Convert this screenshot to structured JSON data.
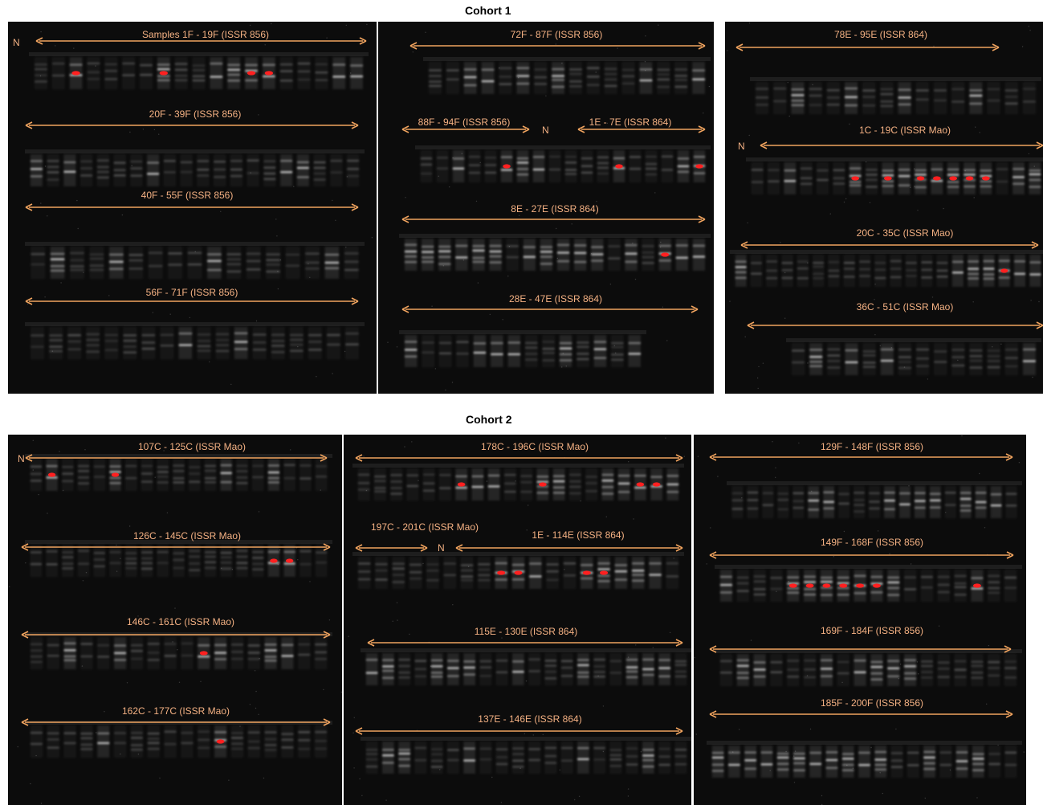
{
  "cohorts": [
    {
      "title": "Cohort 1",
      "panels": [
        {
          "labels": [
            "Samples 1F - 19F (ISSR 856)",
            "20F - 39F (ISSR 856)",
            "40F - 55F (ISSR 856)",
            "56F - 71F (ISSR 856)"
          ],
          "n_markers": [
            "N"
          ]
        },
        {
          "labels": [
            "72F - 87F (ISSR 856)",
            "88F - 94F (ISSR 856)",
            "1E - 7E (ISSR 864)",
            "8E - 27E (ISSR 864)",
            "28E - 47E (ISSR 864)"
          ],
          "n_markers": [
            "N"
          ]
        },
        {
          "labels": [
            "78E - 95E (ISSR 864)",
            "1C - 19C (ISSR Mao)",
            "20C - 35C (ISSR Mao)",
            "36C - 51C (ISSR Mao)"
          ],
          "n_markers": [
            "N"
          ]
        }
      ]
    },
    {
      "title": "Cohort 2",
      "panels": [
        {
          "labels": [
            "107C - 125C (ISSR Mao)",
            "126C - 145C (ISSR Mao)",
            "146C - 161C (ISSR Mao)",
            "162C - 177C (ISSR Mao)"
          ],
          "n_markers": [
            "N"
          ]
        },
        {
          "labels": [
            "178C - 196C (ISSR Mao)",
            "197C - 201C (ISSR Mao)",
            "1E - 114E (ISSR 864)",
            "115E - 130E (ISSR 864)",
            "137E - 146E (ISSR 864)"
          ],
          "n_markers": [
            "N"
          ]
        },
        {
          "labels": [
            "129F - 148F (ISSR 856)",
            "149F - 168F (ISSR 856)",
            "169F - 184F (ISSR 856)",
            "185F - 200F (ISSR 856)"
          ],
          "n_markers": []
        }
      ]
    }
  ],
  "colors": {
    "label": "#f4b183",
    "arrow": "#f0a35e",
    "saturated": "#ff2020",
    "gel_background": "#0c0c0c"
  }
}
